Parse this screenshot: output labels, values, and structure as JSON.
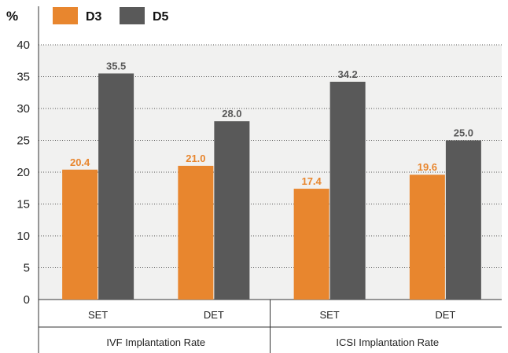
{
  "chart_data": {
    "type": "bar",
    "unit_label": "%",
    "ylim": [
      0,
      40
    ],
    "yticks": [
      "0",
      "5",
      "10",
      "15",
      "20",
      "25",
      "30",
      "35",
      "40"
    ],
    "grid": true,
    "legend_position": "top-left",
    "groups": [
      {
        "label": "IVF Implantation Rate",
        "categories": [
          "SET",
          "DET"
        ]
      },
      {
        "label": "ICSI Implantation Rate",
        "categories": [
          "SET",
          "DET"
        ]
      }
    ],
    "categories": [
      "SET",
      "DET",
      "SET",
      "DET"
    ],
    "series": [
      {
        "name": "D3",
        "color": "#e8862e",
        "values": [
          20.4,
          21.0,
          17.4,
          19.6
        ],
        "labels": [
          "20.4",
          "21.0",
          "17.4",
          "19.6"
        ]
      },
      {
        "name": "D5",
        "color": "#595959",
        "values": [
          35.5,
          28.0,
          34.2,
          25.0
        ],
        "labels": [
          "35.5",
          "28.0",
          "34.2",
          "25.0"
        ]
      }
    ]
  }
}
